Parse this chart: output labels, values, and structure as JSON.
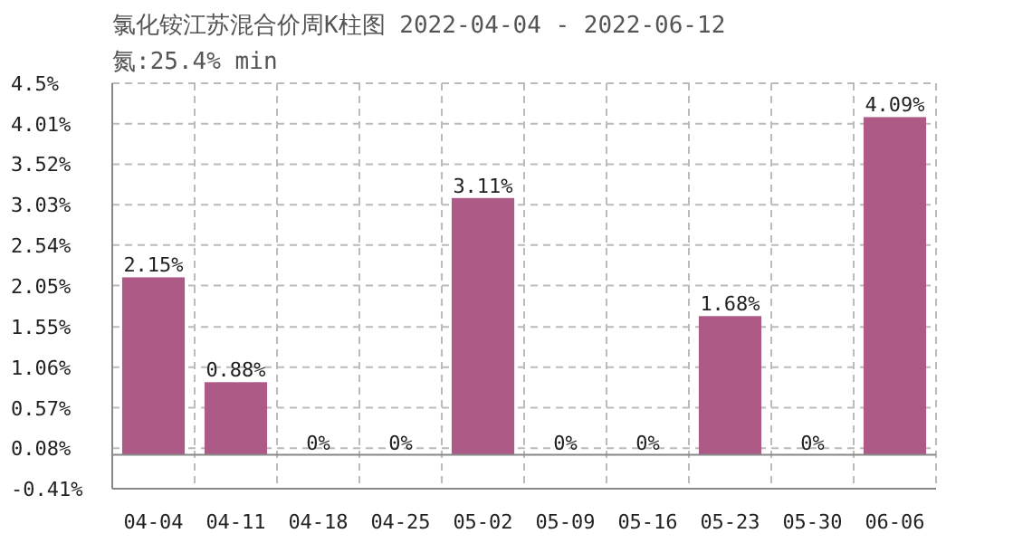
{
  "chart_data": {
    "type": "bar",
    "title": "氯化铵江苏混合价周K柱图 2022-04-04 - 2022-06-12",
    "subtitle": "氮:25.4% min",
    "categories": [
      "04-04",
      "04-11",
      "04-18",
      "04-25",
      "05-02",
      "05-09",
      "05-16",
      "05-23",
      "05-30",
      "06-06"
    ],
    "values": [
      2.15,
      0.88,
      0,
      0,
      3.11,
      0,
      0,
      1.68,
      0,
      4.09
    ],
    "value_labels": [
      "2.15%",
      "0.88%",
      "0%",
      "0%",
      "3.11%",
      "0%",
      "0%",
      "1.68%",
      "0%",
      "4.09%"
    ],
    "color": "#ad5a87",
    "ylim": [
      -0.41,
      4.5
    ],
    "yticks": [
      {
        "value": -0.41,
        "label": "-0.41%"
      },
      {
        "value": 0.08,
        "label": "0.08%"
      },
      {
        "value": 0.57,
        "label": "0.57%"
      },
      {
        "value": 1.06,
        "label": "1.06%"
      },
      {
        "value": 1.55,
        "label": "1.55%"
      },
      {
        "value": 2.05,
        "label": "2.05%"
      },
      {
        "value": 2.54,
        "label": "2.54%"
      },
      {
        "value": 3.03,
        "label": "3.03%"
      },
      {
        "value": 3.52,
        "label": "3.52%"
      },
      {
        "value": 4.01,
        "label": "4.01%"
      },
      {
        "value": 4.5,
        "label": "4.5%"
      }
    ],
    "grid": true
  }
}
